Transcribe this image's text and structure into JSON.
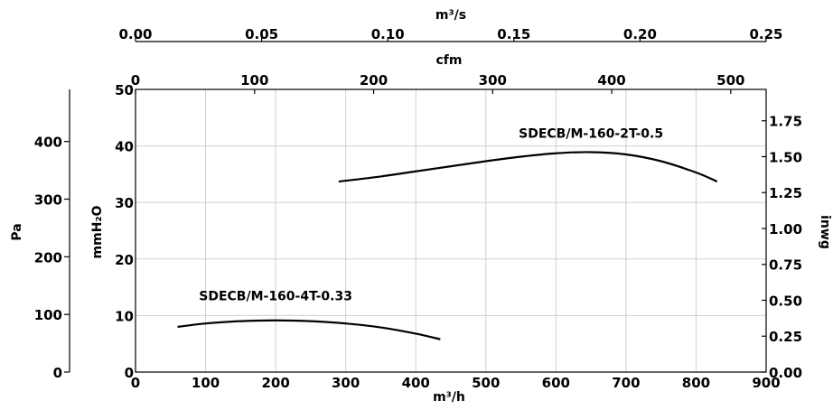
{
  "chart_data": {
    "type": "line",
    "xlabel_bottom": "m³/h",
    "xlabel_top_inner": "cfm",
    "xlabel_top_outer": "m³/s",
    "ylabel_left_outer": "Pa",
    "ylabel_left_inner": "mmH₂O",
    "ylabel_right": "inwg",
    "xlim": [
      0,
      900
    ],
    "ylim": [
      0,
      50
    ],
    "grid": true,
    "x_ticks": [
      0,
      100,
      200,
      300,
      400,
      500,
      600,
      700,
      800,
      900
    ],
    "y_ticks_mmH2O": [
      0,
      10,
      20,
      30,
      40,
      50
    ],
    "y_ticks_Pa": [
      0,
      100,
      200,
      300,
      400
    ],
    "y_ticks_inwg": [
      "0.00",
      "0.25",
      "0.50",
      "0.75",
      "1.00",
      "1.25",
      "1.50",
      "1.75"
    ],
    "top_ticks_cfm": [
      0,
      100,
      200,
      300,
      400,
      500
    ],
    "top_ticks_m3s": [
      "0.00",
      "0.05",
      "0.10",
      "0.15",
      "0.20",
      "0.25"
    ],
    "series": [
      {
        "name": "SDECB/M-160-2T-0.5",
        "x": [
          290,
          350,
          400,
          450,
          500,
          550,
          600,
          650,
          700,
          750,
          800,
          830
        ],
        "y": [
          33.7,
          34.6,
          35.5,
          36.4,
          37.3,
          38.1,
          38.7,
          38.9,
          38.5,
          37.3,
          35.3,
          33.7
        ]
      },
      {
        "name": "SDECB/M-160-4T-0.33",
        "x": [
          60,
          100,
          150,
          200,
          250,
          300,
          350,
          400,
          435
        ],
        "y": [
          8.0,
          8.6,
          9.0,
          9.15,
          9.0,
          8.6,
          7.9,
          6.8,
          5.8
        ]
      }
    ]
  }
}
